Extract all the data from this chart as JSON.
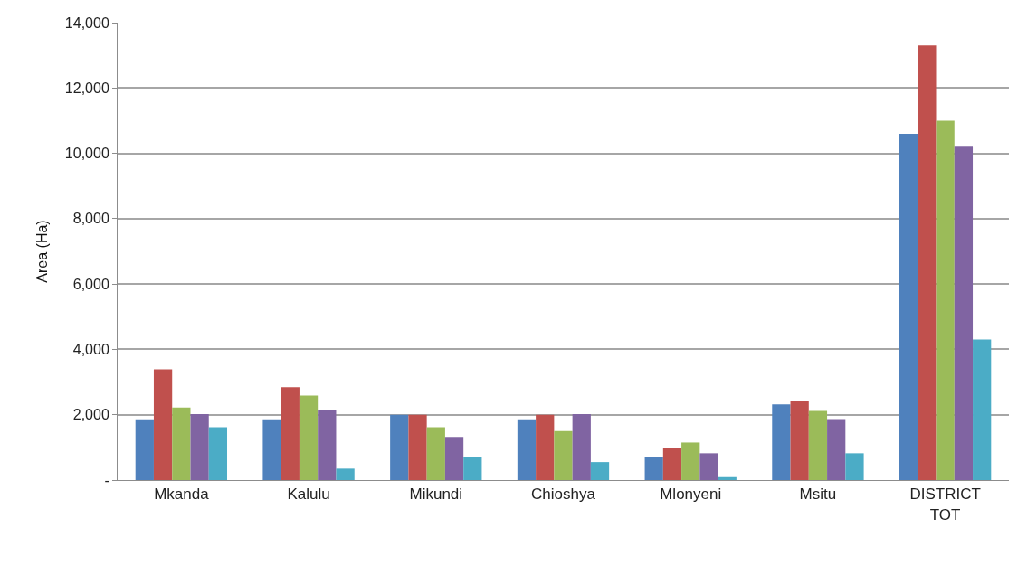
{
  "chart_data": {
    "type": "bar",
    "ylabel": "Area (Ha)",
    "categories": [
      "Mkanda",
      "Kalulu",
      "Mikundi",
      "Chioshya",
      "Mlonyeni",
      "Msitu",
      "DISTRICT\nTOT"
    ],
    "series": [
      {
        "color": "#4f81bd",
        "values": [
          1860,
          1860,
          2000,
          1860,
          720,
          2320,
          10600
        ]
      },
      {
        "color": "#c0504d",
        "values": [
          3390,
          2840,
          2000,
          2000,
          970,
          2420,
          13300
        ]
      },
      {
        "color": "#9bbb59",
        "values": [
          2220,
          2590,
          1620,
          1500,
          1150,
          2120,
          11000
        ]
      },
      {
        "color": "#8064a2",
        "values": [
          2020,
          2150,
          1320,
          2020,
          820,
          1870,
          10200
        ]
      },
      {
        "color": "#4bacc6",
        "values": [
          1620,
          350,
          720,
          550,
          90,
          820,
          4300
        ]
      }
    ],
    "ylim": [
      0,
      14000
    ],
    "yticks": [
      {
        "value": 0,
        "label": "-"
      },
      {
        "value": 2000,
        "label": "2,000"
      },
      {
        "value": 4000,
        "label": "4,000"
      },
      {
        "value": 6000,
        "label": "6,000"
      },
      {
        "value": 8000,
        "label": "8,000"
      },
      {
        "value": 10000,
        "label": "10,000"
      },
      {
        "value": 12000,
        "label": "12,000"
      },
      {
        "value": 14000,
        "label": "14,000"
      }
    ],
    "grid": "y"
  }
}
